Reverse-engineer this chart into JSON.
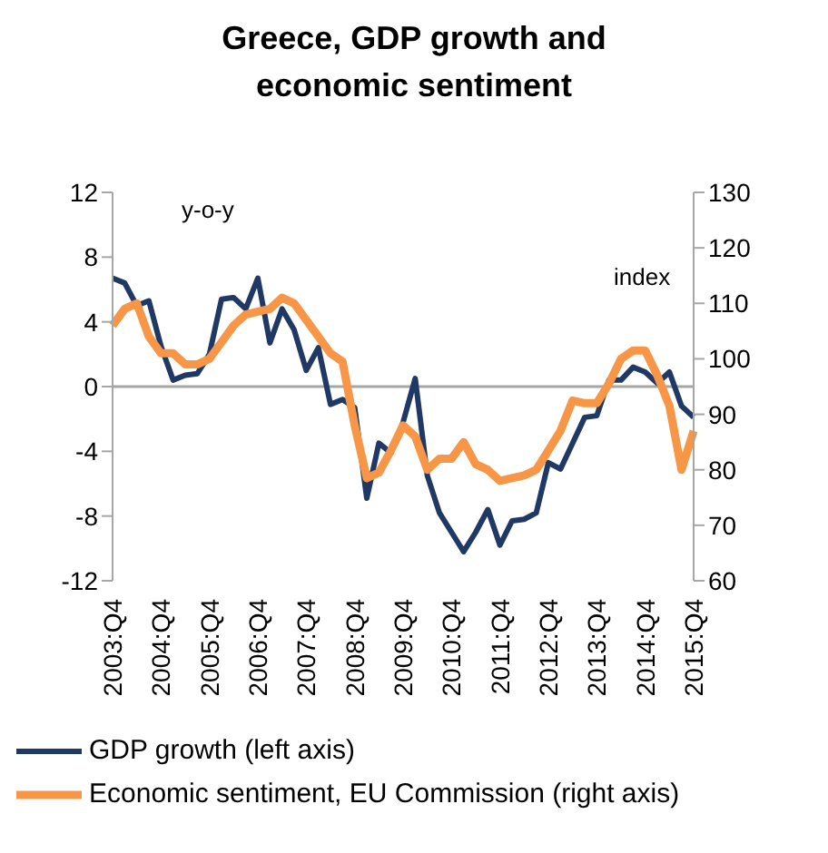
{
  "chart_data": {
    "type": "line",
    "title": "Greece, GDP growth and economic sentiment",
    "categories": [
      "2003:Q4",
      null,
      null,
      null,
      "2004:Q4",
      null,
      null,
      null,
      "2005:Q4",
      null,
      null,
      null,
      "2006:Q4",
      null,
      null,
      null,
      "2007:Q4",
      null,
      null,
      null,
      "2008:Q4",
      null,
      null,
      null,
      "2009:Q4",
      null,
      null,
      null,
      "2010:Q4",
      null,
      null,
      null,
      "2011:Q4",
      null,
      null,
      null,
      "2012:Q4",
      null,
      null,
      null,
      "2013:Q4",
      null,
      null,
      null,
      "2014:Q4",
      null,
      null,
      null,
      "2015:Q4"
    ],
    "series": [
      {
        "name": "GDP growth (left axis)",
        "color": "#1f3864",
        "axis": "y",
        "values": [
          6.7,
          6.4,
          5.0,
          5.3,
          2.5,
          0.4,
          0.7,
          0.8,
          2.0,
          5.4,
          5.5,
          4.8,
          6.7,
          2.7,
          4.8,
          3.5,
          1.0,
          2.4,
          -1.1,
          -0.8,
          -1.3,
          -6.9,
          -3.5,
          -4.1,
          -2.2,
          0.5,
          -5.5,
          -7.8,
          -9.0,
          -10.2,
          -9.0,
          -7.6,
          -9.8,
          -8.3,
          -8.2,
          -7.8,
          -4.7,
          -5.1,
          -3.5,
          -1.9,
          -1.8,
          0.4,
          0.4,
          1.2,
          0.9,
          0.2,
          0.9,
          -1.2,
          -1.9
        ]
      },
      {
        "name": "Economic sentiment, EU Commission (right axis)",
        "color": "#f79646",
        "axis": "y2",
        "values": [
          106,
          109,
          110,
          104,
          101,
          101,
          99,
          99,
          100,
          103,
          106,
          108,
          108.5,
          109,
          111,
          110,
          107,
          104,
          101,
          99.5,
          88,
          78.5,
          79.5,
          83.5,
          88,
          86,
          80,
          82,
          82,
          85,
          81,
          80,
          78,
          78.5,
          79,
          80,
          83.5,
          87,
          92.5,
          92,
          92,
          95.5,
          100,
          101.5,
          101.5,
          97,
          91.5,
          80,
          87
        ]
      }
    ],
    "ylim": [
      -12,
      12
    ],
    "yticks": [
      -12,
      -8,
      -4,
      0,
      4,
      8,
      12
    ],
    "y2lim": [
      60,
      130
    ],
    "y2ticks": [
      60,
      70,
      80,
      90,
      100,
      110,
      120,
      130
    ],
    "ref_lines": [
      {
        "axis": "y",
        "value": 0,
        "color": "#a6a6a6"
      }
    ],
    "annotations": [
      "y-o-y",
      "index"
    ],
    "legend": "bottom left",
    "marker": "none",
    "line_style": "solid"
  }
}
